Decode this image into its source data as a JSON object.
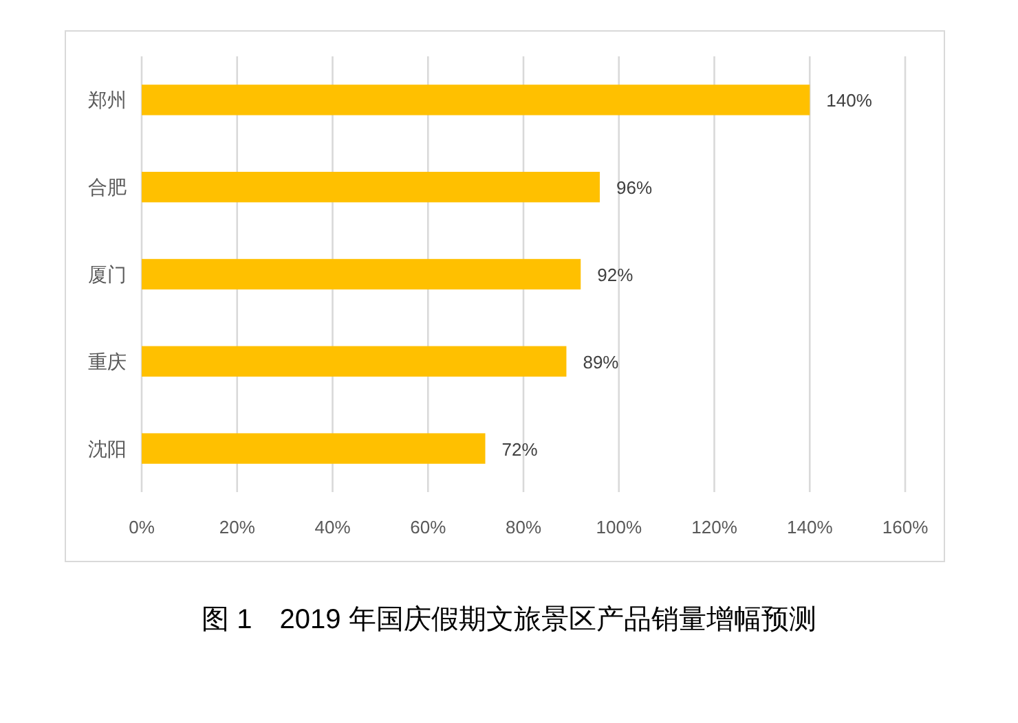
{
  "chart_data": {
    "type": "bar",
    "orientation": "horizontal",
    "title": "图 1　2019 年国庆假期文旅景区产品销量增幅预测",
    "categories": [
      "郑州",
      "合肥",
      "厦门",
      "重庆",
      "沈阳"
    ],
    "values": [
      140,
      96,
      92,
      89,
      72
    ],
    "color": "#ffc000",
    "xlim": [
      0,
      160
    ],
    "xticks": [
      {
        "value": 0,
        "label": "0%"
      },
      {
        "value": 20,
        "label": "20%"
      },
      {
        "value": 40,
        "label": "40%"
      },
      {
        "value": 60,
        "label": "60%"
      },
      {
        "value": 80,
        "label": "80%"
      },
      {
        "value": 100,
        "label": "100%"
      },
      {
        "value": 120,
        "label": "120%"
      },
      {
        "value": 140,
        "label": "140%"
      },
      {
        "value": 160,
        "label": "160%"
      }
    ],
    "grid": "x",
    "value_labels": [
      "140%",
      "96%",
      "92%",
      "89%",
      "72%"
    ]
  }
}
